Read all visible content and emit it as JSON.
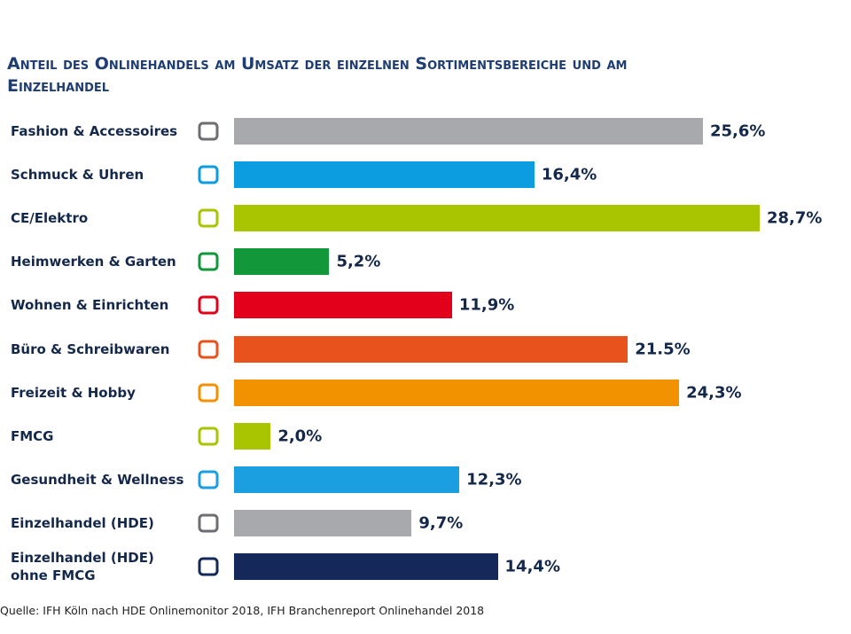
{
  "chart_data": {
    "type": "bar",
    "orientation": "horizontal",
    "title": "Anteil des Onlinehandels am Umsatz der einzelnen Sortimentsbereiche und am Einzelhandel",
    "categories": [
      "Fashion & Accessoires",
      "Schmuck & Uhren",
      "CE/Elektro",
      "Heimwerken & Garten",
      "Wohnen & Einrichten",
      "Büro & Schreibwaren",
      "Freizeit & Hobby",
      "FMCG",
      "Gesundheit & Wellness",
      "Einzelhandel (HDE)",
      "Einzelhandel (HDE) ohne FMCG"
    ],
    "values": [
      25.6,
      16.4,
      28.7,
      5.2,
      11.9,
      21.5,
      24.3,
      2.0,
      12.3,
      9.7,
      14.4
    ],
    "value_labels": [
      "25,6%",
      "16,4%",
      "28,7%",
      "5,2%",
      "11,9%",
      "21.5%",
      "24,3%",
      "2,0%",
      "12,3%",
      "9,7%",
      "14,4%"
    ],
    "colors": [
      "#a7a9ac",
      "#0c9ce0",
      "#a9c400",
      "#12983b",
      "#e3001b",
      "#e8521c",
      "#f39200",
      "#a9c400",
      "#1b9fe0",
      "#a7a9ac",
      "#14295a"
    ],
    "source": "Quelle: IFH Köln nach HDE Onlinemonitor 2018, IFH Branchenreport Onlinehandel 2018"
  }
}
